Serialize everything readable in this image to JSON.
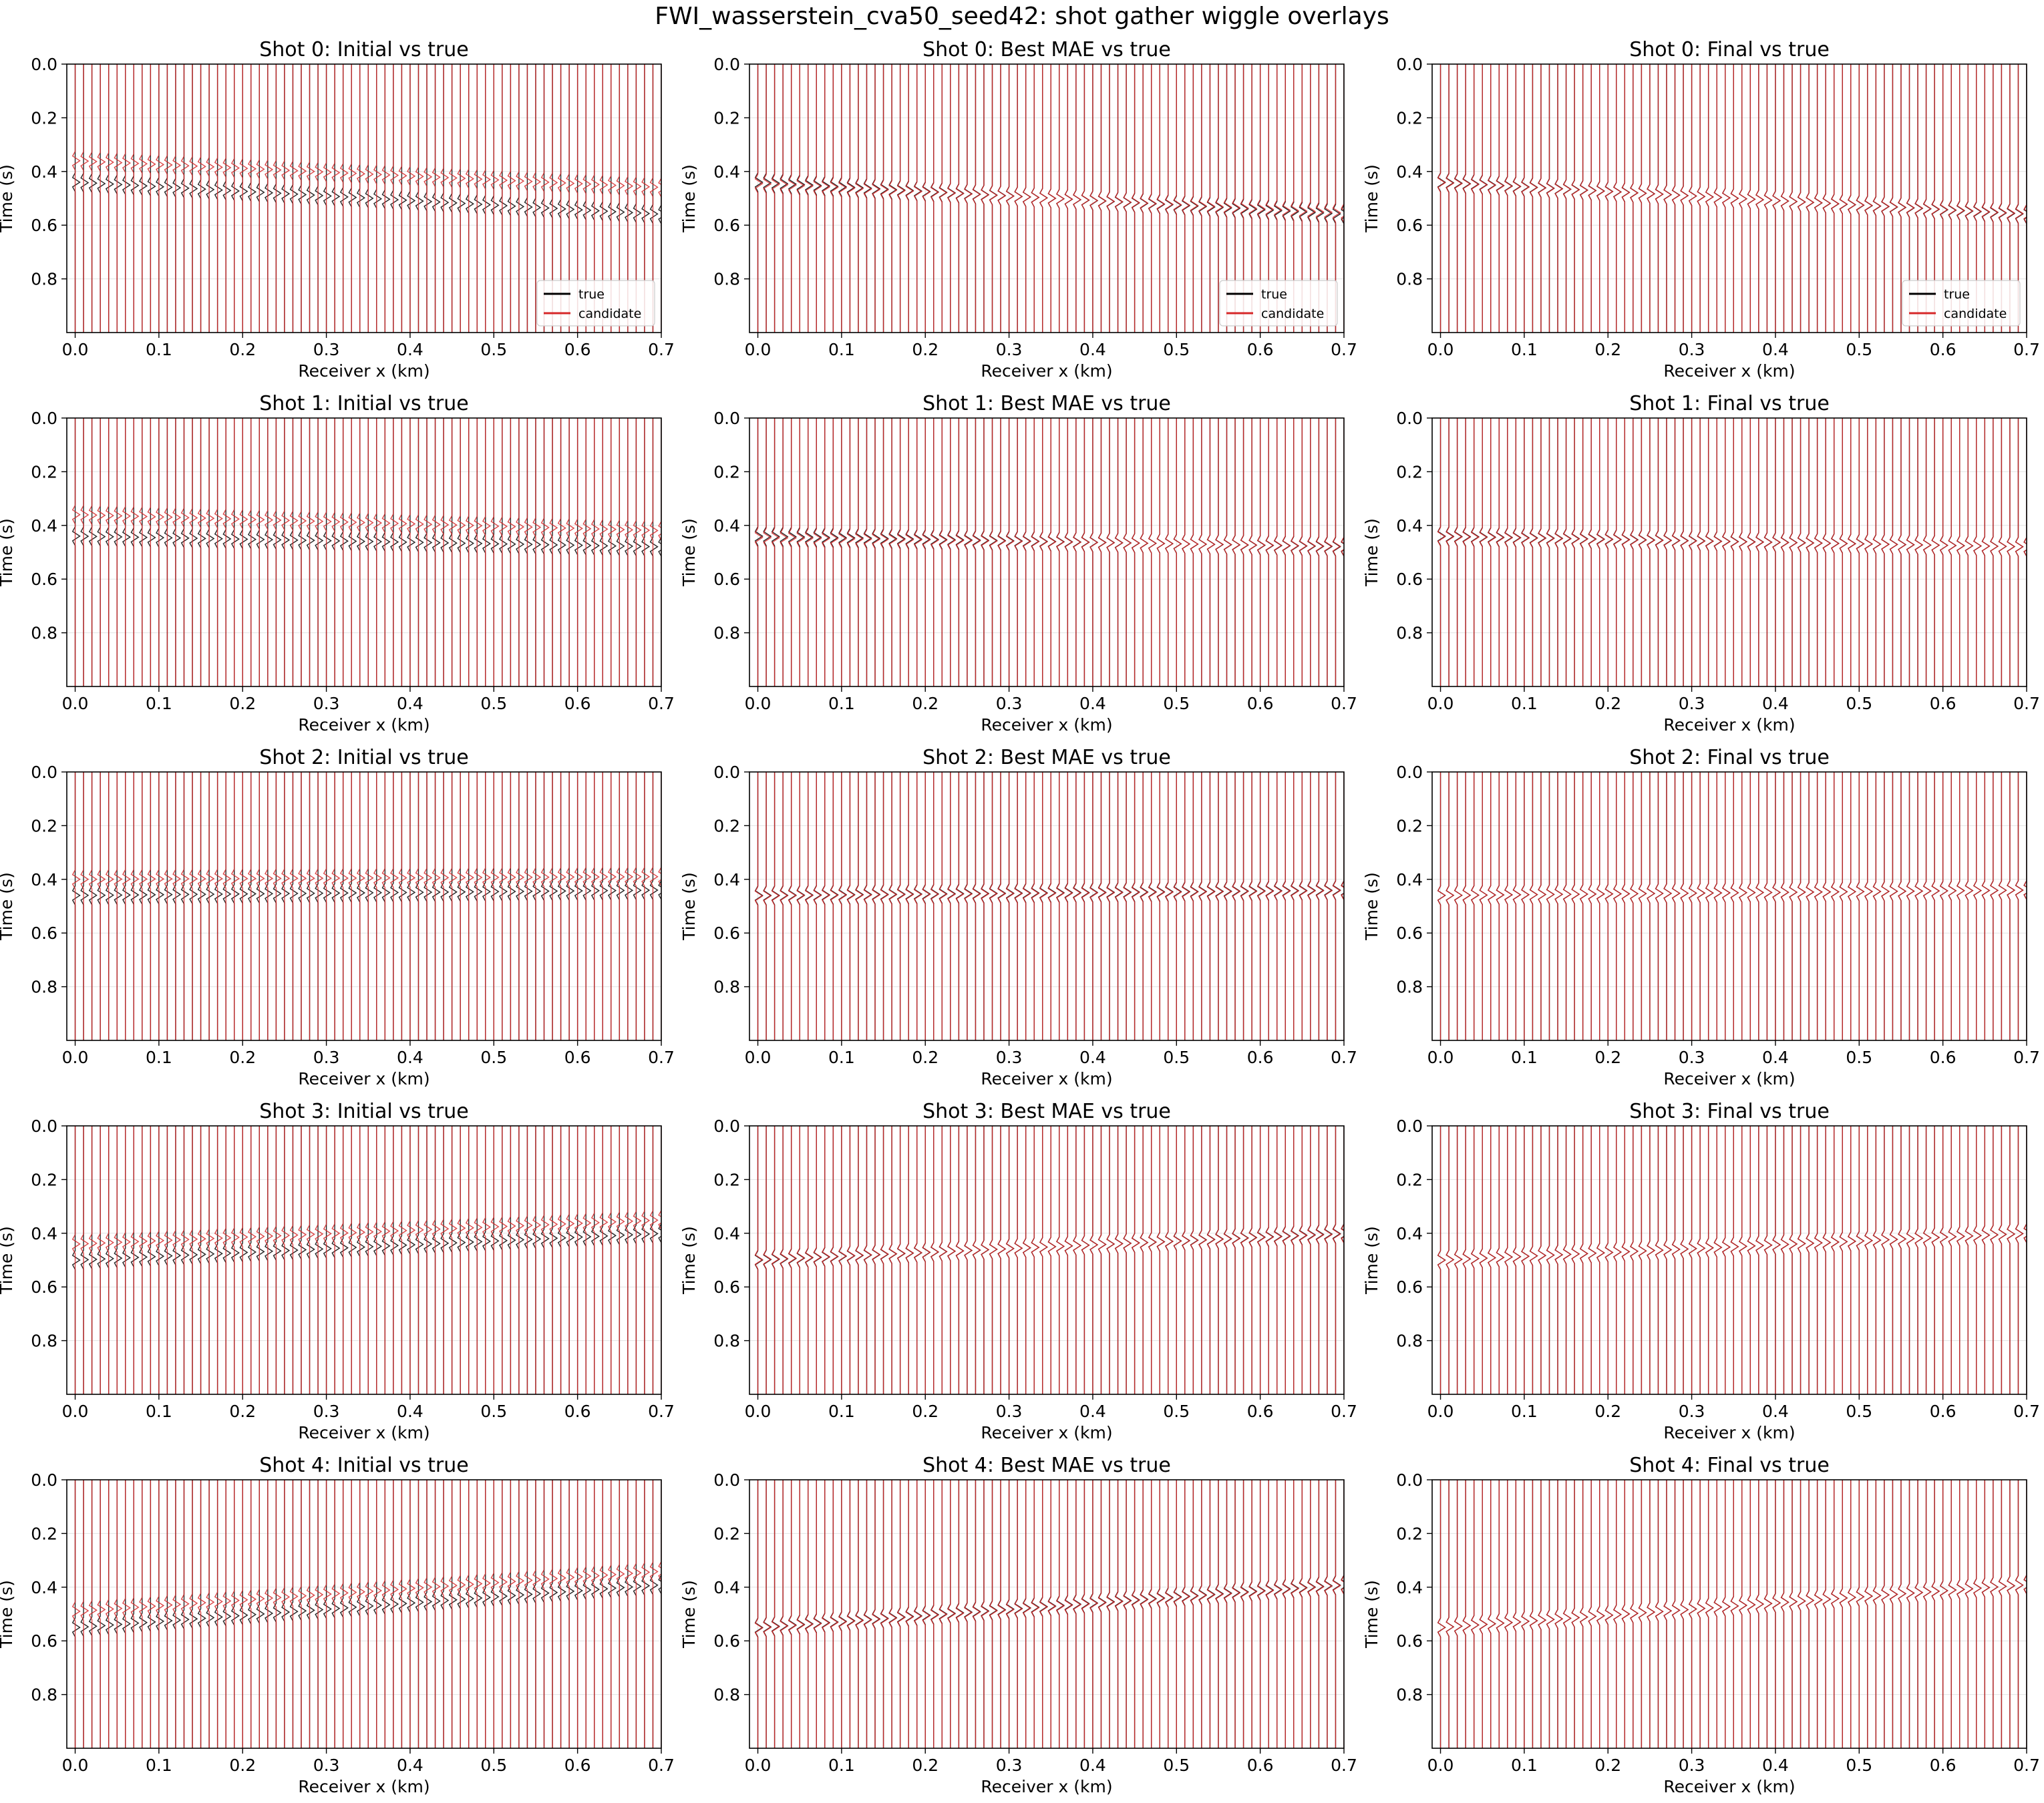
{
  "figure": {
    "title": "FWI_wasserstein_cva50_seed42: shot gather wiggle overlays"
  },
  "colors": {
    "true_trace": "#000000",
    "candidate_trace": "#d62728",
    "grid": "#b0b0b0"
  },
  "chart_data": {
    "type": "line",
    "layout": {
      "rows": 5,
      "cols": 3
    },
    "xlabel": "Receiver x (km)",
    "ylabel": "Time (s)",
    "xlim": [
      -0.01,
      0.7
    ],
    "ylim": [
      1.0,
      0.0
    ],
    "y_inverted": true,
    "xticks": [
      "0.0",
      "0.1",
      "0.2",
      "0.3",
      "0.4",
      "0.5",
      "0.6",
      "0.7"
    ],
    "yticks": [
      "0.0",
      "0.2",
      "0.4",
      "0.6",
      "0.8"
    ],
    "grid": true,
    "receivers": {
      "count": 71,
      "x_start_km": 0.0,
      "x_spacing_km": 0.01
    },
    "legend": {
      "entries": [
        "true",
        "candidate"
      ],
      "location": "lower right",
      "panels": "first row"
    },
    "shots": [
      {
        "shot": 0,
        "true_arrival_s": [
          0.44,
          0.56
        ],
        "panels": [
          {
            "title": "Shot 0: Initial vs true",
            "candidate_arrival_s": [
              0.36,
              0.46
            ]
          },
          {
            "title": "Shot 0: Best MAE vs true",
            "candidate_arrival_s": [
              0.445,
              0.555
            ]
          },
          {
            "title": "Shot 0: Final vs true",
            "candidate_arrival_s": [
              0.442,
              0.558
            ]
          }
        ]
      },
      {
        "shot": 1,
        "true_arrival_s": [
          0.44,
          0.48
        ],
        "panels": [
          {
            "title": "Shot 1: Initial vs true",
            "candidate_arrival_s": [
              0.36,
              0.42
            ]
          },
          {
            "title": "Shot 1: Best MAE vs true",
            "candidate_arrival_s": [
              0.445,
              0.478
            ]
          },
          {
            "title": "Shot 1: Final vs true",
            "candidate_arrival_s": [
              0.442,
              0.48
            ]
          }
        ]
      },
      {
        "shot": 2,
        "true_arrival_s": [
          0.46,
          0.44
        ],
        "panels": [
          {
            "title": "Shot 2: Initial vs true",
            "candidate_arrival_s": [
              0.4,
              0.39
            ]
          },
          {
            "title": "Shot 2: Best MAE vs true",
            "candidate_arrival_s": [
              0.462,
              0.442
            ]
          },
          {
            "title": "Shot 2: Final vs true",
            "candidate_arrival_s": [
              0.46,
              0.44
            ]
          }
        ]
      },
      {
        "shot": 3,
        "true_arrival_s": [
          0.5,
          0.4
        ],
        "panels": [
          {
            "title": "Shot 3: Initial vs true",
            "candidate_arrival_s": [
              0.44,
              0.35
            ]
          },
          {
            "title": "Shot 3: Best MAE vs true",
            "candidate_arrival_s": [
              0.498,
              0.402
            ]
          },
          {
            "title": "Shot 3: Final vs true",
            "candidate_arrival_s": [
              0.5,
              0.4
            ]
          }
        ]
      },
      {
        "shot": 4,
        "true_arrival_s": [
          0.55,
          0.39
        ],
        "panels": [
          {
            "title": "Shot 4: Initial vs true",
            "candidate_arrival_s": [
              0.49,
              0.34
            ]
          },
          {
            "title": "Shot 4: Best MAE vs true",
            "candidate_arrival_s": [
              0.552,
              0.392
            ]
          },
          {
            "title": "Shot 4: Final vs true",
            "candidate_arrival_s": [
              0.55,
              0.39
            ]
          }
        ]
      }
    ]
  }
}
